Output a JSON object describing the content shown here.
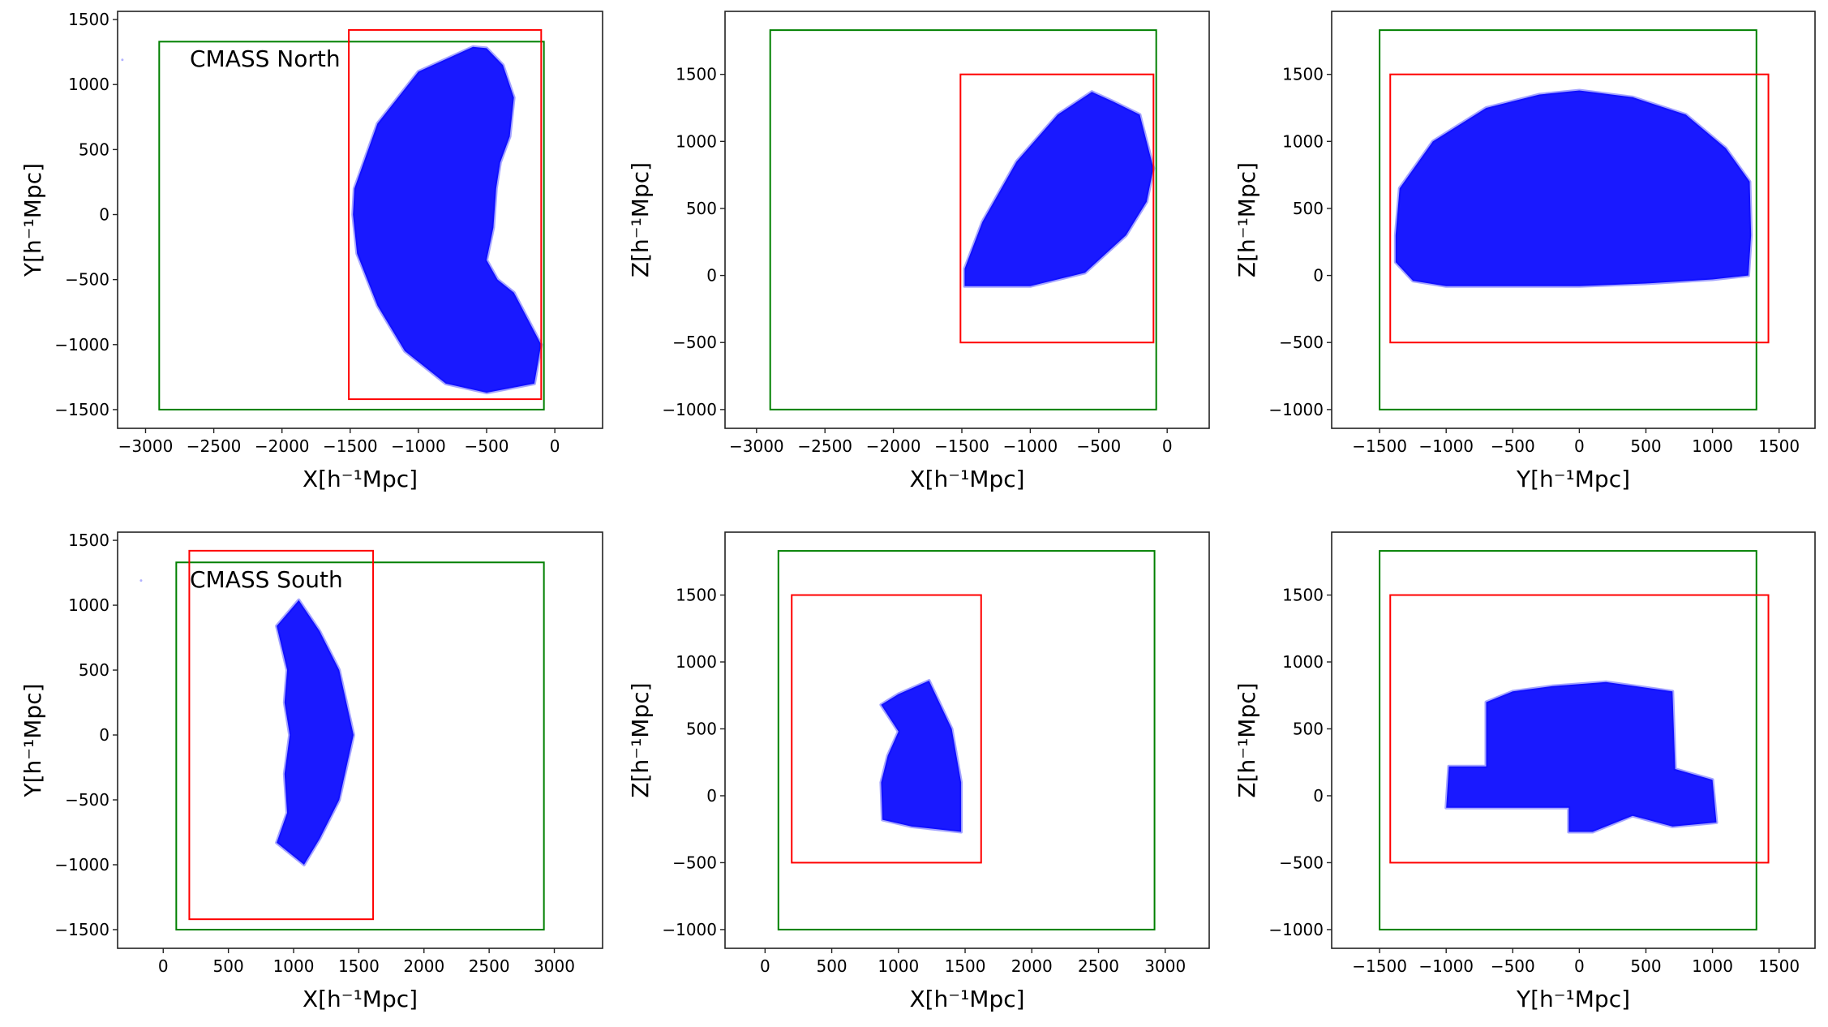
{
  "chart_data": [
    {
      "type": "scatter",
      "title": "",
      "annotation": "CMASS North",
      "xlabel": "X[h⁻¹Mpc]",
      "ylabel": "Y[h⁻¹Mpc]",
      "xlim": [
        -3205,
        350
      ],
      "ylim": [
        -1644,
        1563
      ],
      "xticks": [
        -3000,
        -2500,
        -2000,
        -1500,
        -1000,
        -500,
        0
      ],
      "yticks": [
        -1500,
        -1000,
        -500,
        0,
        500,
        1000,
        1500
      ],
      "point_color": "#0000ff",
      "point_cloud_outline": [
        [
          -600,
          1290
        ],
        [
          -1000,
          1100
        ],
        [
          -1300,
          700
        ],
        [
          -1470,
          200
        ],
        [
          -1480,
          0
        ],
        [
          -1450,
          -300
        ],
        [
          -1300,
          -700
        ],
        [
          -1100,
          -1050
        ],
        [
          -800,
          -1300
        ],
        [
          -500,
          -1370
        ],
        [
          -150,
          -1300
        ],
        [
          -100,
          -1000
        ],
        [
          -200,
          -800
        ],
        [
          -300,
          -600
        ],
        [
          -420,
          -500
        ],
        [
          -500,
          -350
        ],
        [
          -450,
          -100
        ],
        [
          -430,
          200
        ],
        [
          -400,
          400
        ],
        [
          -330,
          600
        ],
        [
          -300,
          900
        ],
        [
          -380,
          1150
        ],
        [
          -500,
          1280
        ]
      ],
      "isolated_points": [
        [
          -3170,
          1190
        ]
      ],
      "boxes": [
        {
          "color": "#008000",
          "x": [
            -2900,
            -80
          ],
          "y": [
            -1500,
            1330
          ]
        },
        {
          "color": "#ff0000",
          "x": [
            -1510,
            -100
          ],
          "y": [
            -1420,
            1420
          ]
        }
      ]
    },
    {
      "type": "scatter",
      "title": "",
      "xlabel": "X[h⁻¹Mpc]",
      "ylabel": "Z[h⁻¹Mpc]",
      "xlim": [
        -3230,
        307
      ],
      "ylim": [
        -1140,
        1970
      ],
      "xticks": [
        -3000,
        -2500,
        -2000,
        -1500,
        -1000,
        -500,
        0
      ],
      "yticks": [
        -1000,
        -500,
        0,
        500,
        1000,
        1500
      ],
      "point_color": "#0000ff",
      "point_cloud_outline": [
        [
          -1480,
          -80
        ],
        [
          -1000,
          -80
        ],
        [
          -600,
          20
        ],
        [
          -300,
          300
        ],
        [
          -150,
          550
        ],
        [
          -100,
          800
        ],
        [
          -200,
          1200
        ],
        [
          -400,
          1300
        ],
        [
          -550,
          1370
        ],
        [
          -800,
          1200
        ],
        [
          -1100,
          850
        ],
        [
          -1350,
          400
        ],
        [
          -1480,
          50
        ]
      ],
      "boxes": [
        {
          "color": "#008000",
          "x": [
            -2900,
            -80
          ],
          "y": [
            -1000,
            1830
          ]
        },
        {
          "color": "#ff0000",
          "x": [
            -1510,
            -100
          ],
          "y": [
            -500,
            1500
          ]
        }
      ]
    },
    {
      "type": "scatter",
      "title": "",
      "xlabel": "Y[h⁻¹Mpc]",
      "ylabel": "Z[h⁻¹Mpc]",
      "xlim": [
        -1860,
        1770
      ],
      "ylim": [
        -1140,
        1970
      ],
      "xticks": [
        -1500,
        -1000,
        -500,
        0,
        500,
        1000,
        1500
      ],
      "yticks": [
        -1000,
        -500,
        0,
        500,
        1000,
        1500
      ],
      "point_color": "#0000ff",
      "point_cloud_outline": [
        [
          -1380,
          300
        ],
        [
          -1350,
          650
        ],
        [
          -1100,
          1000
        ],
        [
          -700,
          1250
        ],
        [
          -300,
          1350
        ],
        [
          0,
          1380
        ],
        [
          400,
          1330
        ],
        [
          800,
          1200
        ],
        [
          1100,
          950
        ],
        [
          1280,
          700
        ],
        [
          1290,
          300
        ],
        [
          1270,
          0
        ],
        [
          1000,
          -30
        ],
        [
          500,
          -60
        ],
        [
          0,
          -80
        ],
        [
          -500,
          -80
        ],
        [
          -1000,
          -80
        ],
        [
          -1250,
          -40
        ],
        [
          -1380,
          100
        ]
      ],
      "boxes": [
        {
          "color": "#008000",
          "x": [
            -1500,
            1330
          ],
          "y": [
            -1000,
            1830
          ]
        },
        {
          "color": "#ff0000",
          "x": [
            -1420,
            1420
          ],
          "y": [
            -500,
            1500
          ]
        }
      ]
    },
    {
      "type": "scatter",
      "title": "",
      "annotation": "CMASS South",
      "xlabel": "X[h⁻¹Mpc]",
      "ylabel": "Y[h⁻¹Mpc]",
      "xlim": [
        -350,
        3370
      ],
      "ylim": [
        -1644,
        1563
      ],
      "xticks": [
        0,
        500,
        1000,
        1500,
        2000,
        2500,
        3000
      ],
      "yticks": [
        -1500,
        -1000,
        -500,
        0,
        500,
        1000,
        1500
      ],
      "point_color": "#0000ff",
      "point_cloud_outline": [
        [
          870,
          840
        ],
        [
          1040,
          1040
        ],
        [
          1200,
          800
        ],
        [
          1350,
          500
        ],
        [
          1460,
          0
        ],
        [
          1350,
          -500
        ],
        [
          1200,
          -800
        ],
        [
          1080,
          -1000
        ],
        [
          870,
          -830
        ],
        [
          950,
          -600
        ],
        [
          930,
          -300
        ],
        [
          970,
          0
        ],
        [
          930,
          250
        ],
        [
          950,
          500
        ]
      ],
      "isolated_points": [
        [
          -170,
          1190
        ]
      ],
      "boxes": [
        {
          "color": "#008000",
          "x": [
            100,
            2920
          ],
          "y": [
            -1500,
            1330
          ]
        },
        {
          "color": "#ff0000",
          "x": [
            200,
            1610
          ],
          "y": [
            -1420,
            1420
          ]
        }
      ]
    },
    {
      "type": "scatter",
      "title": "",
      "xlabel": "X[h⁻¹Mpc]",
      "ylabel": "Z[h⁻¹Mpc]",
      "xlim": [
        -300,
        3330
      ],
      "ylim": [
        -1140,
        1970
      ],
      "xticks": [
        0,
        500,
        1000,
        1500,
        2000,
        2500,
        3000
      ],
      "yticks": [
        -1000,
        -500,
        0,
        500,
        1000,
        1500
      ],
      "point_color": "#0000ff",
      "point_cloud_outline": [
        [
          880,
          -180
        ],
        [
          1100,
          -230
        ],
        [
          1470,
          -270
        ],
        [
          1470,
          100
        ],
        [
          1400,
          500
        ],
        [
          1230,
          860
        ],
        [
          1000,
          760
        ],
        [
          870,
          680
        ],
        [
          1000,
          480
        ],
        [
          920,
          300
        ],
        [
          870,
          100
        ]
      ],
      "boxes": [
        {
          "color": "#008000",
          "x": [
            100,
            2920
          ],
          "y": [
            -1000,
            1830
          ]
        },
        {
          "color": "#ff0000",
          "x": [
            200,
            1620
          ],
          "y": [
            -500,
            1500
          ]
        }
      ]
    },
    {
      "type": "scatter",
      "title": "",
      "xlabel": "Y[h⁻¹Mpc]",
      "ylabel": "Z[h⁻¹Mpc]",
      "xlim": [
        -1860,
        1770
      ],
      "ylim": [
        -1140,
        1970
      ],
      "xticks": [
        -1500,
        -1000,
        -500,
        0,
        500,
        1000,
        1500
      ],
      "yticks": [
        -1000,
        -500,
        0,
        500,
        1000,
        1500
      ],
      "point_color": "#0000ff",
      "point_cloud_outline": [
        [
          -980,
          220
        ],
        [
          -700,
          220
        ],
        [
          -700,
          700
        ],
        [
          -500,
          780
        ],
        [
          -200,
          820
        ],
        [
          200,
          850
        ],
        [
          700,
          780
        ],
        [
          720,
          200
        ],
        [
          1000,
          120
        ],
        [
          1030,
          -200
        ],
        [
          700,
          -230
        ],
        [
          400,
          -150
        ],
        [
          100,
          -270
        ],
        [
          -80,
          -270
        ],
        [
          -80,
          -90
        ],
        [
          -1000,
          -90
        ]
      ],
      "boxes": [
        {
          "color": "#008000",
          "x": [
            -1500,
            1330
          ],
          "y": [
            -1000,
            1830
          ]
        },
        {
          "color": "#ff0000",
          "x": [
            -1420,
            1420
          ],
          "y": [
            -500,
            1500
          ]
        }
      ]
    }
  ]
}
